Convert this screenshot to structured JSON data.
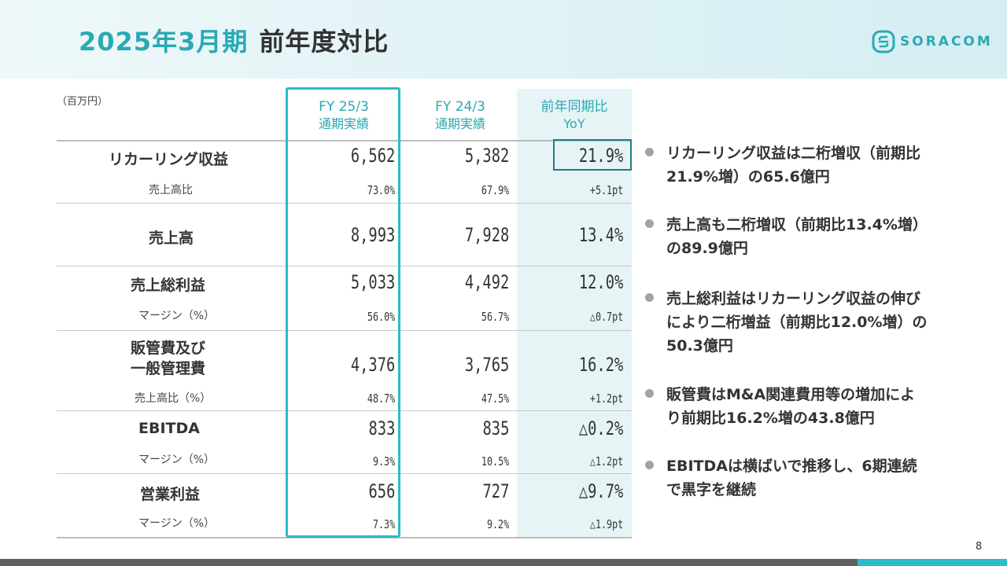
{
  "header": {
    "title_fy": "2025年3月期",
    "title_rest": "前年度対比"
  },
  "logo": {
    "text": "SORACOM",
    "icon": "soracom-logo-icon",
    "color": "#2aa9b3"
  },
  "table": {
    "unit": "（百万円）",
    "columns": [
      {
        "line1": "FY 25/3",
        "line2": "通期実績"
      },
      {
        "line1": "FY 24/3",
        "line2": "通期実績"
      },
      {
        "line1": "前年同期比",
        "line2": "YoY"
      }
    ],
    "rows": [
      {
        "label": "リカーリング収益",
        "values": [
          "6,562",
          "5,382",
          "21.9%"
        ]
      },
      {
        "label": "売上高比",
        "values": [
          "73.0%",
          "67.9%",
          "+5.1pt"
        ]
      },
      {
        "label": "売上高",
        "values": [
          "8,993",
          "7,928",
          "13.4%"
        ]
      },
      {
        "label": "売上総利益",
        "values": [
          "5,033",
          "4,492",
          "12.0%"
        ]
      },
      {
        "label": "マージン（%）",
        "values": [
          "56.0%",
          "56.7%",
          "△0.7pt"
        ]
      },
      {
        "label_line1": "販管費及び",
        "label_line2": "一般管理費",
        "values": [
          "4,376",
          "3,765",
          "16.2%"
        ]
      },
      {
        "label": "売上高比（%）",
        "values": [
          "48.7%",
          "47.5%",
          "+1.2pt"
        ]
      },
      {
        "label": "EBITDA",
        "values": [
          "833",
          "835",
          "△0.2%"
        ]
      },
      {
        "label": "マージン（%）",
        "values": [
          "9.3%",
          "10.5%",
          "△1.2pt"
        ]
      },
      {
        "label": "営業利益",
        "values": [
          "656",
          "727",
          "△9.7%"
        ]
      },
      {
        "label": "マージン（%）",
        "values": [
          "7.3%",
          "9.2%",
          "△1.9pt"
        ]
      }
    ]
  },
  "bullets": [
    {
      "text_line1": "リカーリング収益は二桁増収（前期比",
      "text_line2": "21.9%増）の65.6億円"
    },
    {
      "text_line1": "売上高も二桁増収（前期比13.4%増）",
      "text_line2": "の89.9億円"
    },
    {
      "text_line1": "売上総利益はリカーリング収益の伸び",
      "text_line2": "により二桁増益（前期比12.0%増）の",
      "text_line3": "50.3億円"
    },
    {
      "text_line1": "販管費はM&A関連費用等の増加によ",
      "text_line2": "り前期比16.2%増の43.8億円"
    },
    {
      "text_line1": "EBITDAは横ばいで推移し、6期連続",
      "text_line2": "で黒字を継続"
    }
  ],
  "colors": {
    "accent": "#2bbcc6",
    "yoy_bg": "#e6f4f6",
    "highlight_border": "#1f7d87"
  },
  "page_number": "8"
}
